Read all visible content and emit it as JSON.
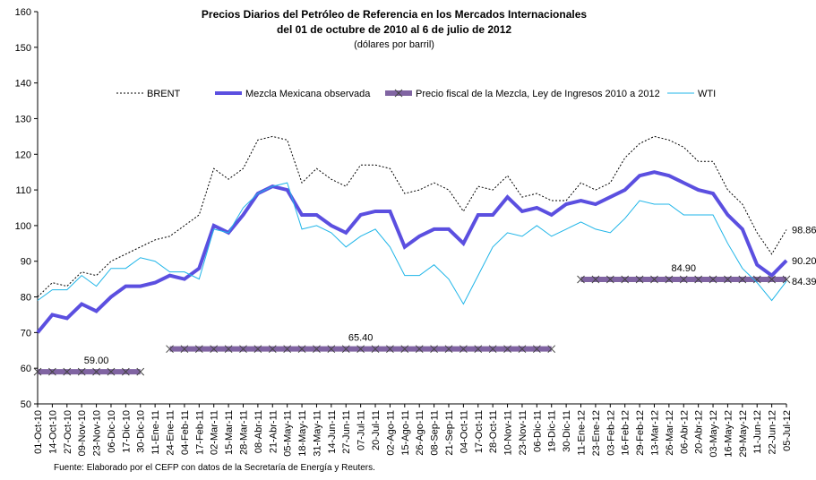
{
  "chart_data": {
    "type": "line",
    "title": "Precios Diarios del Petróleo de Referencia en los Mercados Internacionales",
    "subtitle": "del 01 de octubre de 2010 al 6 de julio de 2012",
    "unit_note": "(dólares por barril)",
    "source": "Fuente: Elaborado por el CEFP con datos de la Secretaría de Energía y Reuters.",
    "categories": [
      "01-Oct-10",
      "14-Oct-10",
      "27-Oct-10",
      "09-Nov-10",
      "23-Nov-10",
      "06-Dic-10",
      "17-Dic-10",
      "30-Dic-10",
      "11-Ene-11",
      "24-Ene-11",
      "04-Feb-11",
      "17-Feb-11",
      "02-Mar-11",
      "15-Mar-11",
      "28-Mar-11",
      "08-Abr-11",
      "21-Abr-11",
      "05-May-11",
      "18-May-11",
      "31-May-11",
      "14-Jun-11",
      "27-Jun-11",
      "07-Jul-11",
      "20-Jul-11",
      "02-Ago-11",
      "15-Ago-11",
      "26-Ago-11",
      "08-Sep-11",
      "21-Sep-11",
      "04-Oct-11",
      "17-Oct-11",
      "28-Oct-11",
      "10-Nov-11",
      "23-Nov-11",
      "06-Dic-11",
      "19-Dic-11",
      "30-Dic-11",
      "11-Ene-12",
      "23-Ene-12",
      "03-Feb-12",
      "16-Feb-12",
      "29-Feb-12",
      "13-Mar-12",
      "26-Mar-12",
      "06-Abr-12",
      "20-Abr-12",
      "03-May-12",
      "16-May-12",
      "29-May-12",
      "11-Jun-12",
      "22-Jun-12",
      "05-Jul-12"
    ],
    "series": [
      {
        "name": "BRENT",
        "color": "#000000",
        "dashed": true,
        "line_width": 1,
        "values": [
          80,
          84,
          83,
          87,
          86,
          90,
          92,
          94,
          96,
          97,
          100,
          103,
          116,
          113,
          116,
          124,
          125,
          124,
          112,
          116,
          113,
          111,
          117,
          117,
          116,
          109,
          110,
          112,
          110,
          104,
          111,
          110,
          114,
          108,
          109,
          107,
          107,
          112,
          110,
          112,
          119,
          123,
          125,
          124,
          122,
          118,
          118,
          110,
          106,
          98,
          92,
          98.86
        ],
        "value_labels": [
          null,
          null,
          null,
          null,
          null,
          null,
          null,
          null,
          null,
          null,
          null,
          null,
          null,
          null,
          null,
          null,
          null,
          null,
          null,
          null,
          null,
          null,
          null,
          null,
          null,
          null,
          null,
          null,
          null,
          null,
          null,
          null,
          null,
          null,
          null,
          null,
          null,
          null,
          null,
          null,
          null,
          null,
          null,
          null,
          null,
          null,
          null,
          null,
          null,
          null,
          null,
          "98.86"
        ]
      },
      {
        "name": "Mezcla Mexicana observada",
        "color": "#5b4fe0",
        "dashed": false,
        "line_width": 4,
        "values": [
          70,
          75,
          74,
          78,
          76,
          80,
          83,
          83,
          84,
          86,
          85,
          88,
          100,
          98,
          103,
          109,
          111,
          110,
          103,
          103,
          100,
          98,
          103,
          104,
          104,
          94,
          97,
          99,
          99,
          95,
          103,
          103,
          108,
          104,
          105,
          103,
          106,
          107,
          106,
          108,
          110,
          114,
          115,
          114,
          112,
          110,
          109,
          103,
          99,
          89,
          86,
          90.2
        ],
        "value_labels": [
          null,
          null,
          null,
          null,
          null,
          null,
          null,
          null,
          null,
          null,
          null,
          null,
          null,
          null,
          null,
          null,
          null,
          null,
          null,
          null,
          null,
          null,
          null,
          null,
          null,
          null,
          null,
          null,
          null,
          null,
          null,
          null,
          null,
          null,
          null,
          null,
          null,
          null,
          null,
          null,
          null,
          null,
          null,
          null,
          null,
          null,
          null,
          null,
          null,
          null,
          null,
          "90.20"
        ]
      },
      {
        "name": "Precio fiscal de la Mezcla, Ley de Ingresos 2010 a 2012",
        "color": "#8064a2",
        "dashed": false,
        "line_width": 6,
        "marker": "x",
        "values": [
          59,
          59,
          59,
          59,
          59,
          59,
          59,
          59,
          null,
          65.4,
          65.4,
          65.4,
          65.4,
          65.4,
          65.4,
          65.4,
          65.4,
          65.4,
          65.4,
          65.4,
          65.4,
          65.4,
          65.4,
          65.4,
          65.4,
          65.4,
          65.4,
          65.4,
          65.4,
          65.4,
          65.4,
          65.4,
          65.4,
          65.4,
          65.4,
          65.4,
          null,
          84.9,
          84.9,
          84.9,
          84.9,
          84.9,
          84.9,
          84.9,
          84.9,
          84.9,
          84.9,
          84.9,
          84.9,
          84.9,
          84.9,
          84.9
        ],
        "value_labels": [
          null,
          null,
          null,
          null,
          "59.00",
          null,
          null,
          null,
          null,
          null,
          null,
          null,
          null,
          null,
          null,
          null,
          null,
          null,
          null,
          null,
          null,
          null,
          "65.40",
          null,
          null,
          null,
          null,
          null,
          null,
          null,
          null,
          null,
          null,
          null,
          null,
          null,
          null,
          null,
          null,
          null,
          null,
          null,
          null,
          null,
          "84.90",
          null,
          null,
          null,
          null,
          null,
          null,
          null
        ]
      },
      {
        "name": "WTI",
        "color": "#1fb5e8",
        "dashed": false,
        "line_width": 1,
        "values": [
          79,
          82,
          82,
          86,
          83,
          88,
          88,
          91,
          90,
          87,
          87,
          85,
          99,
          98,
          105,
          109,
          111,
          112,
          99,
          100,
          98,
          94,
          97,
          99,
          94,
          86,
          86,
          89,
          85,
          78,
          86,
          94,
          98,
          97,
          100,
          97,
          99,
          101,
          99,
          98,
          102,
          107,
          106,
          106,
          103,
          103,
          103,
          95,
          88,
          84,
          79,
          84.39
        ],
        "value_labels": [
          null,
          null,
          null,
          null,
          null,
          null,
          null,
          null,
          null,
          null,
          null,
          null,
          null,
          null,
          null,
          null,
          null,
          null,
          null,
          null,
          null,
          null,
          null,
          null,
          null,
          null,
          null,
          null,
          null,
          null,
          null,
          null,
          null,
          null,
          null,
          null,
          null,
          null,
          null,
          null,
          null,
          null,
          null,
          null,
          null,
          null,
          null,
          null,
          null,
          null,
          null,
          "84.39"
        ]
      }
    ],
    "ylim": [
      50,
      160
    ],
    "yticks": [
      50,
      60,
      70,
      80,
      90,
      100,
      110,
      120,
      130,
      140,
      150,
      160
    ],
    "grid": false,
    "legend": "top"
  }
}
